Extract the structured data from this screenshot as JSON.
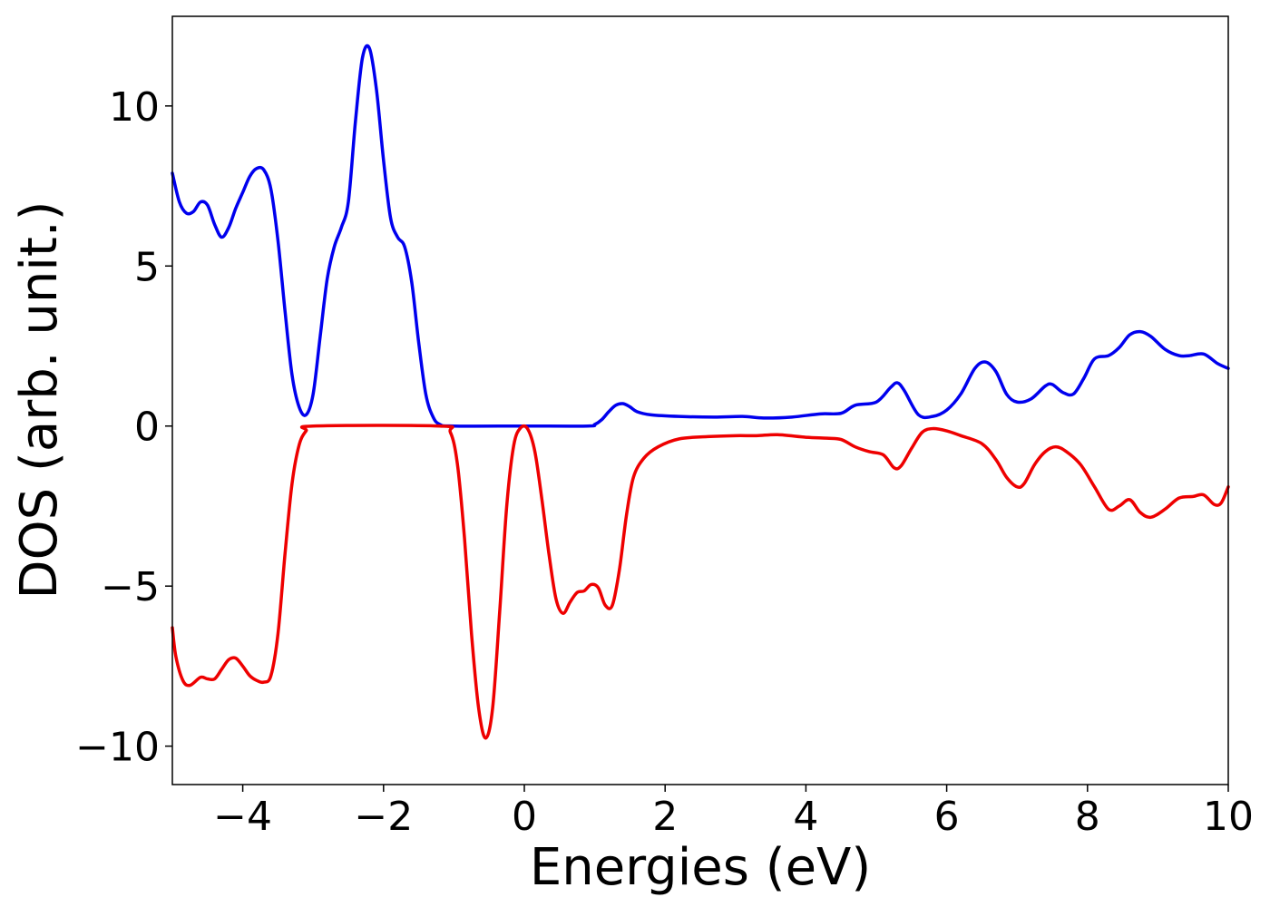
{
  "chart_data": {
    "type": "line",
    "xlabel": "Energies (eV)",
    "ylabel": "DOS (arb. unit.)",
    "xlim": [
      -5,
      10
    ],
    "ylim": [
      -11.2,
      12.8
    ],
    "x_ticks": [
      -4,
      -2,
      0,
      2,
      4,
      6,
      8,
      10
    ],
    "x_tick_labels": [
      "−4",
      "−2",
      "0",
      "2",
      "4",
      "6",
      "8",
      "10"
    ],
    "y_ticks": [
      -10,
      -5,
      0,
      5,
      10
    ],
    "y_tick_labels": [
      "−10",
      "−5",
      "0",
      "5",
      "10"
    ],
    "grid": false,
    "series": [
      {
        "color": "#0000ee",
        "points": [
          [
            -5.0,
            7.9
          ],
          [
            -4.9,
            7.0
          ],
          [
            -4.8,
            6.65
          ],
          [
            -4.7,
            6.7
          ],
          [
            -4.6,
            7.0
          ],
          [
            -4.5,
            6.9
          ],
          [
            -4.4,
            6.3
          ],
          [
            -4.3,
            5.9
          ],
          [
            -4.2,
            6.2
          ],
          [
            -4.1,
            6.8
          ],
          [
            -4.0,
            7.3
          ],
          [
            -3.9,
            7.8
          ],
          [
            -3.8,
            8.05
          ],
          [
            -3.7,
            8.0
          ],
          [
            -3.6,
            7.4
          ],
          [
            -3.5,
            5.8
          ],
          [
            -3.4,
            3.6
          ],
          [
            -3.3,
            1.6
          ],
          [
            -3.2,
            0.6
          ],
          [
            -3.1,
            0.35
          ],
          [
            -3.0,
            1.0
          ],
          [
            -2.9,
            2.8
          ],
          [
            -2.8,
            4.6
          ],
          [
            -2.7,
            5.6
          ],
          [
            -2.6,
            6.2
          ],
          [
            -2.5,
            7.0
          ],
          [
            -2.4,
            9.5
          ],
          [
            -2.3,
            11.5
          ],
          [
            -2.2,
            11.8
          ],
          [
            -2.1,
            10.5
          ],
          [
            -2.0,
            8.3
          ],
          [
            -1.9,
            6.5
          ],
          [
            -1.8,
            5.9
          ],
          [
            -1.7,
            5.6
          ],
          [
            -1.6,
            4.5
          ],
          [
            -1.5,
            2.6
          ],
          [
            -1.4,
            1.0
          ],
          [
            -1.3,
            0.3
          ],
          [
            -1.2,
            0.05
          ],
          [
            -1.0,
            0.0
          ],
          [
            0.0,
            0.0
          ],
          [
            0.9,
            0.0
          ],
          [
            1.0,
            0.05
          ],
          [
            1.1,
            0.2
          ],
          [
            1.2,
            0.45
          ],
          [
            1.3,
            0.65
          ],
          [
            1.4,
            0.7
          ],
          [
            1.5,
            0.6
          ],
          [
            1.6,
            0.45
          ],
          [
            1.8,
            0.35
          ],
          [
            2.2,
            0.3
          ],
          [
            2.7,
            0.28
          ],
          [
            3.1,
            0.3
          ],
          [
            3.4,
            0.25
          ],
          [
            3.8,
            0.28
          ],
          [
            4.2,
            0.38
          ],
          [
            4.5,
            0.4
          ],
          [
            4.7,
            0.65
          ],
          [
            5.0,
            0.75
          ],
          [
            5.2,
            1.2
          ],
          [
            5.3,
            1.35
          ],
          [
            5.4,
            1.1
          ],
          [
            5.6,
            0.35
          ],
          [
            5.8,
            0.3
          ],
          [
            6.0,
            0.5
          ],
          [
            6.2,
            1.0
          ],
          [
            6.4,
            1.8
          ],
          [
            6.55,
            2.0
          ],
          [
            6.7,
            1.7
          ],
          [
            6.85,
            1.0
          ],
          [
            7.0,
            0.75
          ],
          [
            7.2,
            0.85
          ],
          [
            7.4,
            1.25
          ],
          [
            7.5,
            1.3
          ],
          [
            7.65,
            1.05
          ],
          [
            7.8,
            1.0
          ],
          [
            7.95,
            1.5
          ],
          [
            8.1,
            2.1
          ],
          [
            8.3,
            2.2
          ],
          [
            8.45,
            2.45
          ],
          [
            8.6,
            2.85
          ],
          [
            8.75,
            2.95
          ],
          [
            8.9,
            2.8
          ],
          [
            9.1,
            2.4
          ],
          [
            9.3,
            2.2
          ],
          [
            9.45,
            2.2
          ],
          [
            9.65,
            2.25
          ],
          [
            9.85,
            1.95
          ],
          [
            10.0,
            1.8
          ]
        ]
      },
      {
        "color": "#ee0000",
        "points": [
          [
            -5.0,
            -6.3
          ],
          [
            -4.95,
            -7.2
          ],
          [
            -4.85,
            -7.95
          ],
          [
            -4.75,
            -8.1
          ],
          [
            -4.6,
            -7.85
          ],
          [
            -4.5,
            -7.9
          ],
          [
            -4.4,
            -7.9
          ],
          [
            -4.3,
            -7.6
          ],
          [
            -4.2,
            -7.3
          ],
          [
            -4.1,
            -7.25
          ],
          [
            -4.0,
            -7.5
          ],
          [
            -3.9,
            -7.8
          ],
          [
            -3.8,
            -7.95
          ],
          [
            -3.7,
            -8.0
          ],
          [
            -3.6,
            -7.8
          ],
          [
            -3.5,
            -6.5
          ],
          [
            -3.4,
            -4.0
          ],
          [
            -3.3,
            -1.8
          ],
          [
            -3.2,
            -0.6
          ],
          [
            -3.1,
            -0.15
          ],
          [
            -3.0,
            0.0
          ],
          [
            -1.2,
            0.0
          ],
          [
            -1.05,
            -0.2
          ],
          [
            -0.95,
            -1.2
          ],
          [
            -0.85,
            -3.5
          ],
          [
            -0.75,
            -6.5
          ],
          [
            -0.65,
            -8.8
          ],
          [
            -0.55,
            -9.75
          ],
          [
            -0.45,
            -8.8
          ],
          [
            -0.35,
            -5.8
          ],
          [
            -0.25,
            -2.5
          ],
          [
            -0.15,
            -0.6
          ],
          [
            -0.05,
            -0.05
          ],
          [
            0.05,
            -0.1
          ],
          [
            0.15,
            -0.8
          ],
          [
            0.25,
            -2.3
          ],
          [
            0.35,
            -4.0
          ],
          [
            0.45,
            -5.4
          ],
          [
            0.55,
            -5.85
          ],
          [
            0.65,
            -5.5
          ],
          [
            0.75,
            -5.2
          ],
          [
            0.85,
            -5.15
          ],
          [
            0.95,
            -4.95
          ],
          [
            1.05,
            -5.05
          ],
          [
            1.15,
            -5.6
          ],
          [
            1.25,
            -5.6
          ],
          [
            1.35,
            -4.5
          ],
          [
            1.45,
            -2.8
          ],
          [
            1.55,
            -1.6
          ],
          [
            1.7,
            -1.0
          ],
          [
            1.9,
            -0.65
          ],
          [
            2.2,
            -0.4
          ],
          [
            2.6,
            -0.33
          ],
          [
            3.0,
            -0.3
          ],
          [
            3.3,
            -0.3
          ],
          [
            3.6,
            -0.27
          ],
          [
            4.0,
            -0.35
          ],
          [
            4.3,
            -0.38
          ],
          [
            4.5,
            -0.42
          ],
          [
            4.7,
            -0.65
          ],
          [
            4.9,
            -0.8
          ],
          [
            5.1,
            -0.9
          ],
          [
            5.25,
            -1.3
          ],
          [
            5.35,
            -1.25
          ],
          [
            5.5,
            -0.7
          ],
          [
            5.65,
            -0.2
          ],
          [
            5.8,
            -0.08
          ],
          [
            6.0,
            -0.15
          ],
          [
            6.2,
            -0.3
          ],
          [
            6.5,
            -0.55
          ],
          [
            6.7,
            -1.05
          ],
          [
            6.85,
            -1.6
          ],
          [
            7.0,
            -1.9
          ],
          [
            7.1,
            -1.8
          ],
          [
            7.25,
            -1.2
          ],
          [
            7.4,
            -0.8
          ],
          [
            7.55,
            -0.65
          ],
          [
            7.7,
            -0.8
          ],
          [
            7.9,
            -1.2
          ],
          [
            8.1,
            -1.9
          ],
          [
            8.3,
            -2.6
          ],
          [
            8.45,
            -2.5
          ],
          [
            8.6,
            -2.3
          ],
          [
            8.75,
            -2.7
          ],
          [
            8.9,
            -2.85
          ],
          [
            9.1,
            -2.6
          ],
          [
            9.3,
            -2.25
          ],
          [
            9.5,
            -2.2
          ],
          [
            9.65,
            -2.15
          ],
          [
            9.8,
            -2.45
          ],
          [
            9.9,
            -2.4
          ],
          [
            10.0,
            -1.9
          ]
        ]
      }
    ]
  }
}
